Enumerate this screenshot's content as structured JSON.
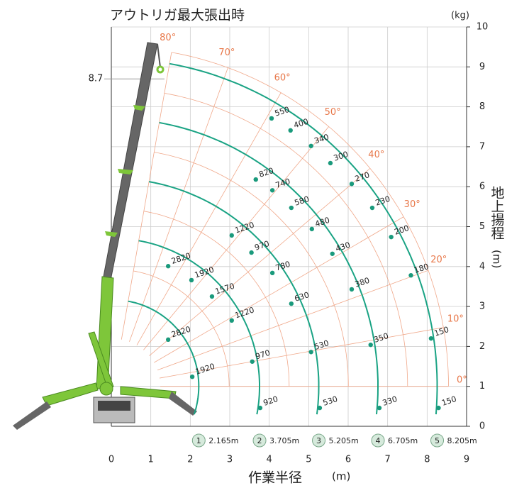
{
  "chart_data": {
    "type": "crane-load",
    "title": "アウトリガ最大張出時",
    "unit": "(kg)",
    "x_label": "作業半径",
    "x_unit": "(m)",
    "y_label": "地上揚程",
    "y_unit": "(m)",
    "xlim": [
      0,
      9
    ],
    "ylim": [
      0,
      10
    ],
    "xticks": [
      0,
      1,
      2,
      3,
      4,
      5,
      6,
      7,
      8,
      9
    ],
    "yticks": [
      0,
      1,
      2,
      3,
      4,
      5,
      6,
      7,
      8,
      9,
      10
    ],
    "max_height": 8.7,
    "angles": [
      {
        "value": 0,
        "label": "0°"
      },
      {
        "value": 10,
        "label": "10°"
      },
      {
        "value": 20,
        "label": "20°"
      },
      {
        "value": 30,
        "label": "30°"
      },
      {
        "value": 40,
        "label": "40°"
      },
      {
        "value": 50,
        "label": "50°"
      },
      {
        "value": 60,
        "label": "60°"
      },
      {
        "value": 70,
        "label": "70°"
      },
      {
        "value": 80,
        "label": "80°"
      }
    ],
    "booms": [
      {
        "number": "1",
        "radius": 2.165,
        "radius_label": "2.165m",
        "points": [
          {
            "x": 1.44,
            "y": 2.17,
            "load": 2820
          },
          {
            "x": 2.05,
            "y": 1.24,
            "load": 1920
          }
        ]
      },
      {
        "number": "2",
        "radius": 3.705,
        "radius_label": "3.705m",
        "points": [
          {
            "x": 1.44,
            "y": 4.01,
            "load": 2820
          },
          {
            "x": 2.03,
            "y": 3.66,
            "load": 1920
          },
          {
            "x": 2.55,
            "y": 3.25,
            "load": 1570
          },
          {
            "x": 3.05,
            "y": 2.65,
            "load": 1220
          },
          {
            "x": 3.57,
            "y": 1.62,
            "load": 970
          },
          {
            "x": 3.77,
            "y": 0.46,
            "load": 920
          }
        ]
      },
      {
        "number": "3",
        "radius": 5.205,
        "radius_label": "5.205m",
        "points": [
          {
            "x": 3.05,
            "y": 4.78,
            "load": 1220
          },
          {
            "x": 3.55,
            "y": 4.35,
            "load": 970
          },
          {
            "x": 4.08,
            "y": 3.84,
            "load": 780
          },
          {
            "x": 4.56,
            "y": 3.07,
            "load": 630
          },
          {
            "x": 5.06,
            "y": 1.86,
            "load": 530
          },
          {
            "x": 5.28,
            "y": 0.46,
            "load": 530
          }
        ]
      },
      {
        "number": "4",
        "radius": 6.705,
        "radius_label": "6.705m",
        "points": [
          {
            "x": 3.66,
            "y": 6.18,
            "load": 820
          },
          {
            "x": 4.08,
            "y": 5.91,
            "load": 740
          },
          {
            "x": 4.56,
            "y": 5.47,
            "load": 580
          },
          {
            "x": 5.08,
            "y": 4.94,
            "load": 480
          },
          {
            "x": 5.6,
            "y": 4.32,
            "load": 430
          },
          {
            "x": 6.09,
            "y": 3.43,
            "load": 380
          },
          {
            "x": 6.57,
            "y": 2.04,
            "load": 350
          },
          {
            "x": 6.79,
            "y": 0.46,
            "load": 330
          }
        ]
      },
      {
        "number": "5",
        "radius": 8.205,
        "radius_label": "8.205m",
        "points": [
          {
            "x": 4.06,
            "y": 7.71,
            "load": 550
          },
          {
            "x": 4.54,
            "y": 7.41,
            "load": 400
          },
          {
            "x": 5.06,
            "y": 7.02,
            "load": 340
          },
          {
            "x": 5.55,
            "y": 6.59,
            "load": 300
          },
          {
            "x": 6.09,
            "y": 6.07,
            "load": 270
          },
          {
            "x": 6.61,
            "y": 5.47,
            "load": 230
          },
          {
            "x": 7.09,
            "y": 4.74,
            "load": 200
          },
          {
            "x": 7.59,
            "y": 3.78,
            "load": 180
          },
          {
            "x": 8.1,
            "y": 2.2,
            "load": 150
          },
          {
            "x": 8.29,
            "y": 0.46,
            "load": 150
          }
        ]
      }
    ]
  }
}
